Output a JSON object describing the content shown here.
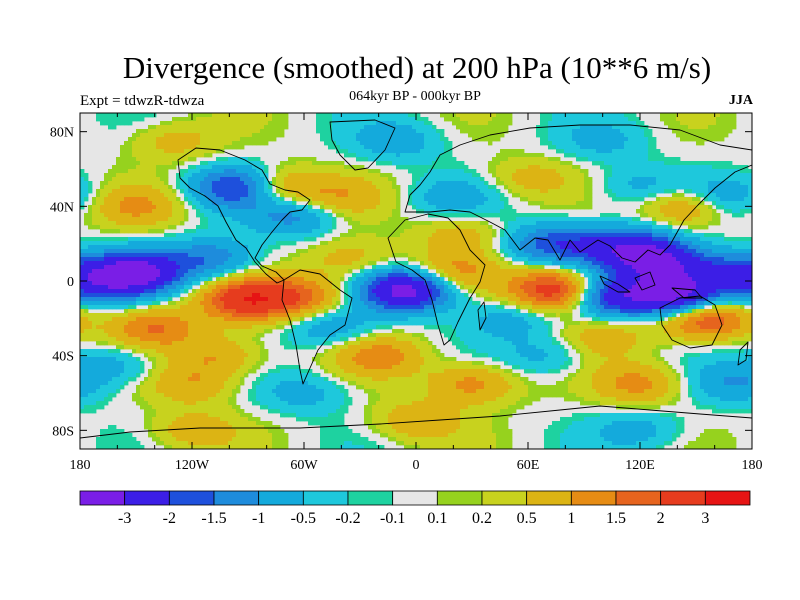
{
  "title": "Divergence (smoothed) at 200 hPa (10**6 m/s)",
  "subtitle": "064kyr BP - 000kyr BP",
  "left_label": "Expt = tdwzR-tdwza",
  "right_label": "JJA",
  "lat_ticks": [
    "80N",
    "40N",
    "0",
    "40S",
    "80S"
  ],
  "lon_ticks": [
    "180",
    "120W",
    "60W",
    "0",
    "60E",
    "120E",
    "180"
  ],
  "colorbar": {
    "labels": [
      "-3",
      "-2",
      "-1.5",
      "-1",
      "-0.5",
      "-0.2",
      "-0.1",
      "0.1",
      "0.2",
      "0.5",
      "1",
      "1.5",
      "2",
      "3"
    ],
    "colors": [
      "#7a1ee6",
      "#3c1ee6",
      "#1e50dc",
      "#1e8cdc",
      "#14aadc",
      "#1ec8dc",
      "#1ed2a0",
      "#e6e6e6",
      "#96d21e",
      "#c8d21e",
      "#dcb414",
      "#e68c14",
      "#e6641e",
      "#e63c1e",
      "#e61414"
    ]
  },
  "anomalies": [
    {
      "lon": -150,
      "lat": 5,
      "v": -3.2
    },
    {
      "lon": -170,
      "lat": -2,
      "v": -1.5
    },
    {
      "lon": -110,
      "lat": 12,
      "v": -1.4
    },
    {
      "lon": -90,
      "lat": -10,
      "v": 2.6
    },
    {
      "lon": -140,
      "lat": -25,
      "v": 1.5
    },
    {
      "lon": -105,
      "lat": -40,
      "v": 1.0
    },
    {
      "lon": -95,
      "lat": 50,
      "v": -2.4
    },
    {
      "lon": -65,
      "lat": 35,
      "v": -1.2
    },
    {
      "lon": -75,
      "lat": 50,
      "v": 1.6
    },
    {
      "lon": -40,
      "lat": 45,
      "v": 0.8
    },
    {
      "lon": -60,
      "lat": -8,
      "v": 1.4
    },
    {
      "lon": -45,
      "lat": -25,
      "v": -0.9
    },
    {
      "lon": -35,
      "lat": 12,
      "v": 0.8
    },
    {
      "lon": -5,
      "lat": -5,
      "v": -3.4
    },
    {
      "lon": -20,
      "lat": -40,
      "v": 1.2
    },
    {
      "lon": 20,
      "lat": 5,
      "v": 1.1
    },
    {
      "lon": 25,
      "lat": 25,
      "v": 0.8
    },
    {
      "lon": 65,
      "lat": 20,
      "v": -1.0
    },
    {
      "lon": 50,
      "lat": -20,
      "v": -0.8
    },
    {
      "lon": 75,
      "lat": -5,
      "v": 2.8
    },
    {
      "lon": 85,
      "lat": 20,
      "v": -1.2
    },
    {
      "lon": 115,
      "lat": 18,
      "v": -2.0
    },
    {
      "lon": 130,
      "lat": 10,
      "v": -2.6
    },
    {
      "lon": 140,
      "lat": -8,
      "v": -3.4
    },
    {
      "lon": 105,
      "lat": -8,
      "v": -2.4
    },
    {
      "lon": 100,
      "lat": -30,
      "v": 0.8
    },
    {
      "lon": 155,
      "lat": -20,
      "v": 2.2
    },
    {
      "lon": 165,
      "lat": 5,
      "v": -1.6
    },
    {
      "lon": 145,
      "lat": 40,
      "v": 1.4
    },
    {
      "lon": 165,
      "lat": 45,
      "v": -1.0
    },
    {
      "lon": 120,
      "lat": 50,
      "v": -0.7
    },
    {
      "lon": 60,
      "lat": 55,
      "v": 0.7
    },
    {
      "lon": 20,
      "lat": 45,
      "v": -0.7
    },
    {
      "lon": -150,
      "lat": 40,
      "v": 1.0
    },
    {
      "lon": -160,
      "lat": -45,
      "v": -0.8
    },
    {
      "lon": -120,
      "lat": -55,
      "v": 0.9
    },
    {
      "lon": -60,
      "lat": -60,
      "v": -0.7
    },
    {
      "lon": 30,
      "lat": -55,
      "v": 1.3
    },
    {
      "lon": 70,
      "lat": -40,
      "v": -0.7
    },
    {
      "lon": 120,
      "lat": -55,
      "v": 1.2
    },
    {
      "lon": 170,
      "lat": -55,
      "v": -0.9
    },
    {
      "lon": -10,
      "lat": 75,
      "v": -0.8
    },
    {
      "lon": 100,
      "lat": 75,
      "v": -0.6
    },
    {
      "lon": -130,
      "lat": 75,
      "v": 0.7
    },
    {
      "lon": 0,
      "lat": -75,
      "v": 0.9
    },
    {
      "lon": 120,
      "lat": -80,
      "v": -0.7
    },
    {
      "lon": -120,
      "lat": -80,
      "v": 0.8
    }
  ]
}
